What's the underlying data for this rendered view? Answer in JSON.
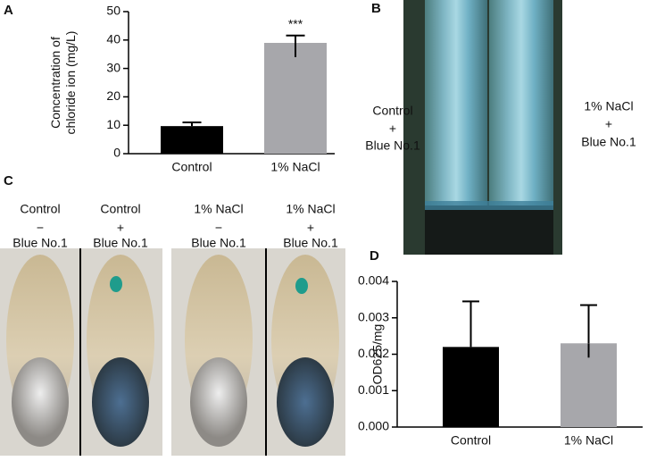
{
  "panel_labels": [
    "A",
    "B",
    "C",
    "D"
  ],
  "panel_b": {
    "left": [
      "Control",
      "+",
      "Blue No.1"
    ],
    "right": [
      "1% NaCl",
      "+",
      "Blue No.1"
    ]
  },
  "panel_c": {
    "columns": [
      [
        "Control",
        "−",
        "Blue No.1"
      ],
      [
        "Control",
        "+",
        "Blue No.1"
      ],
      [
        "1% NaCl",
        "−",
        "Blue No.1"
      ],
      [
        "1% NaCl",
        "+",
        "Blue No.1"
      ]
    ]
  },
  "chart_data": [
    {
      "type": "bar",
      "y_label": [
        "Concentration of",
        "chloride ion (mg/L)"
      ],
      "categories": [
        "Control",
        "1% NaCl"
      ],
      "values": [
        9.7,
        39
      ],
      "errors": [
        1.3,
        2.6
      ],
      "colors": [
        "#000000",
        "#a7a7ab"
      ],
      "annotations": [
        null,
        "***"
      ],
      "ylim": [
        0,
        50
      ],
      "yticks": [
        0,
        10,
        20,
        30,
        40,
        50
      ]
    },
    {
      "type": "bar",
      "y_label": [
        "OD625/mg"
      ],
      "categories": [
        "Control",
        "1% NaCl"
      ],
      "values": [
        0.0022,
        0.0023
      ],
      "errors": [
        0.00125,
        0.00105
      ],
      "colors": [
        "#000000",
        "#a7a7ab"
      ],
      "ylim": [
        0,
        0.004
      ],
      "yticks": [
        {
          "value": 0,
          "label": "0.000"
        },
        0.001,
        0.002,
        0.003,
        0.004
      ]
    }
  ]
}
